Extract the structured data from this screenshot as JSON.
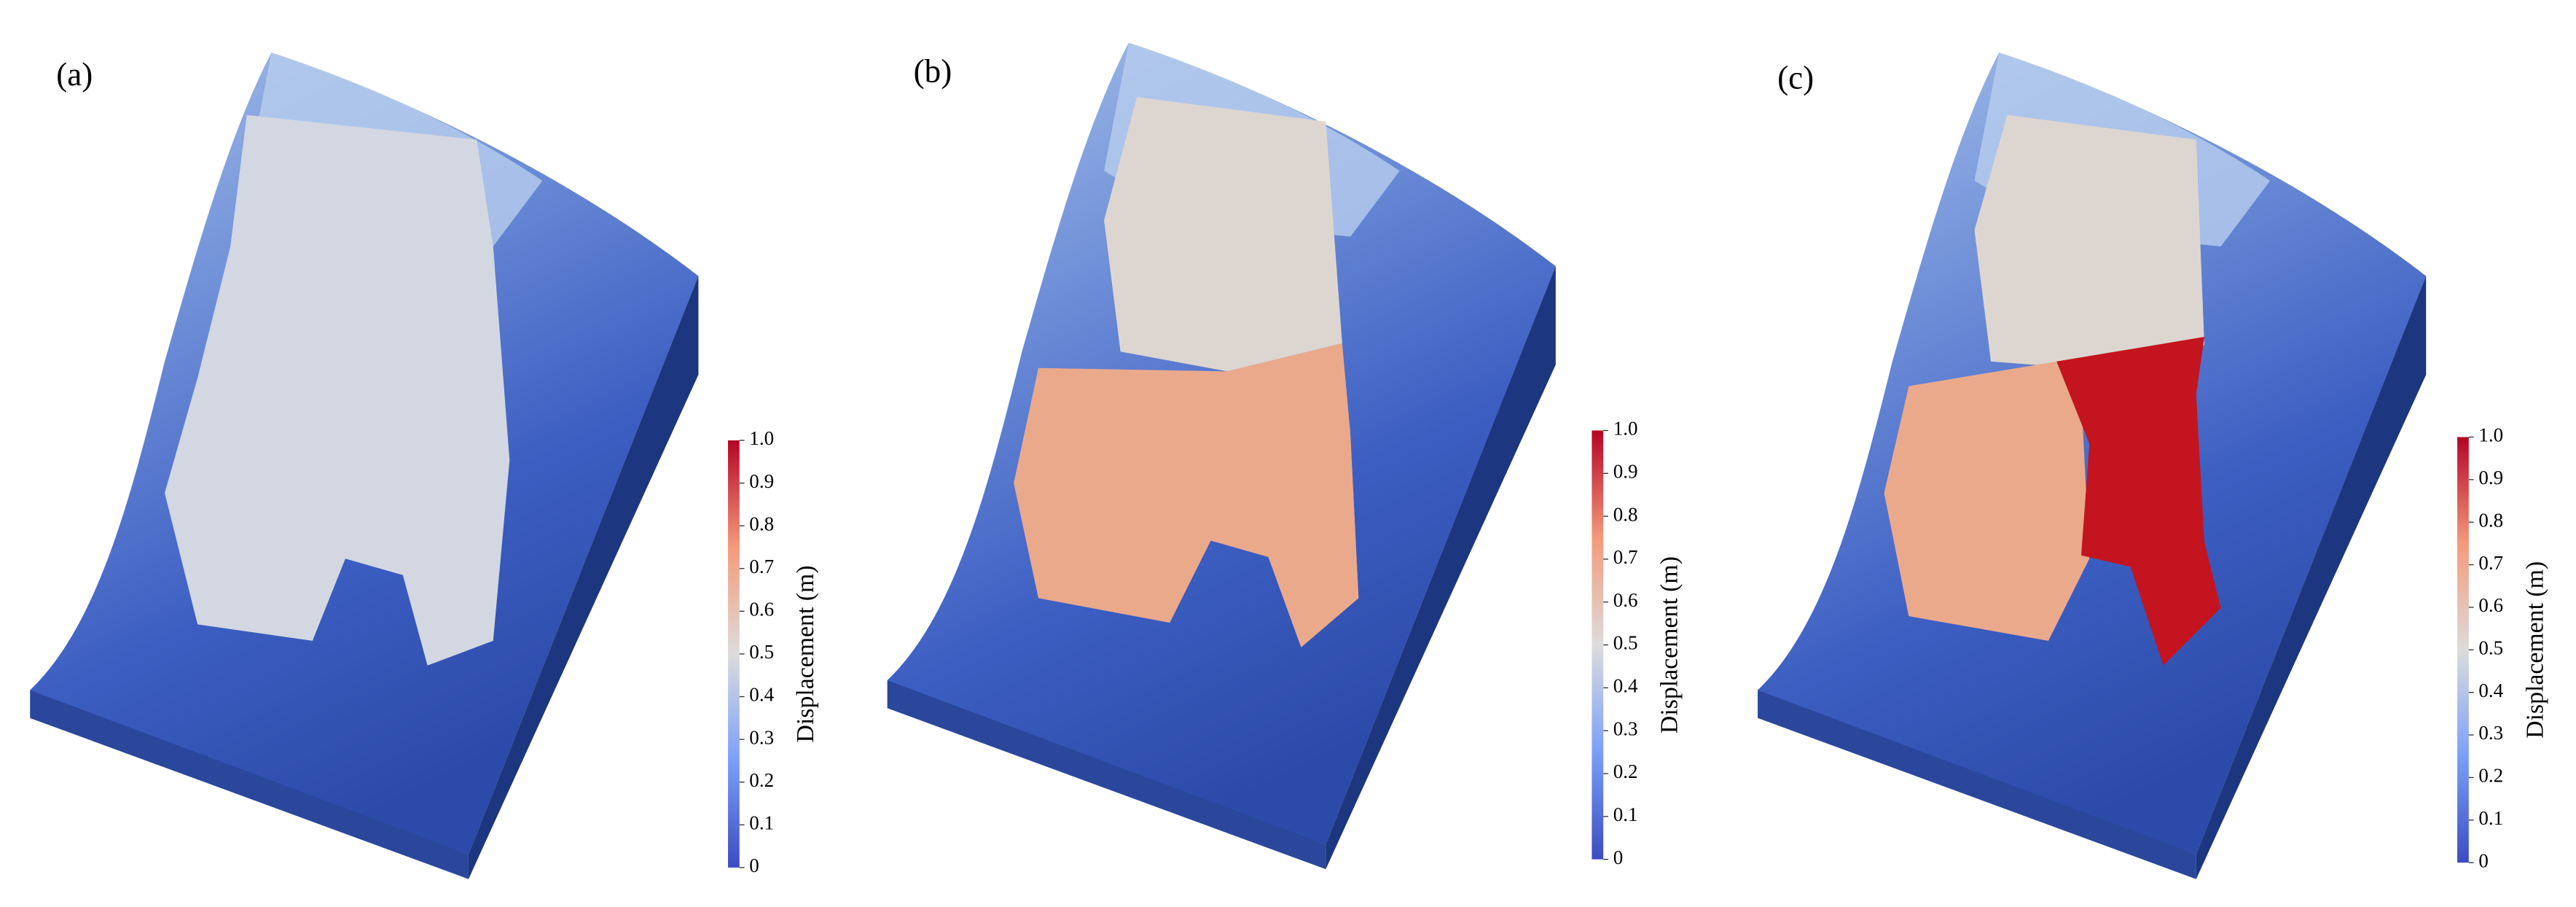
{
  "panels": [
    {
      "label": "(a)",
      "colorbar": {
        "title": "Displacement (m)",
        "ticks": [
          "0",
          "0.1",
          "0.2",
          "0.3",
          "0.4",
          "0.5",
          "0.6",
          "0.7",
          "0.8",
          "0.9",
          "1.0"
        ]
      }
    },
    {
      "label": "(b)",
      "colorbar": {
        "title": "Displacement (m)",
        "ticks": [
          "0",
          "0.1",
          "0.2",
          "0.3",
          "0.4",
          "0.5",
          "0.6",
          "0.7",
          "0.8",
          "0.9",
          "1.0"
        ]
      }
    },
    {
      "label": "(c)",
      "colorbar": {
        "title": "Displacement (m)",
        "ticks": [
          "0",
          "0.1",
          "0.2",
          "0.3",
          "0.4",
          "0.5",
          "0.6",
          "0.7",
          "0.8",
          "0.9",
          "1.0"
        ]
      }
    }
  ]
}
